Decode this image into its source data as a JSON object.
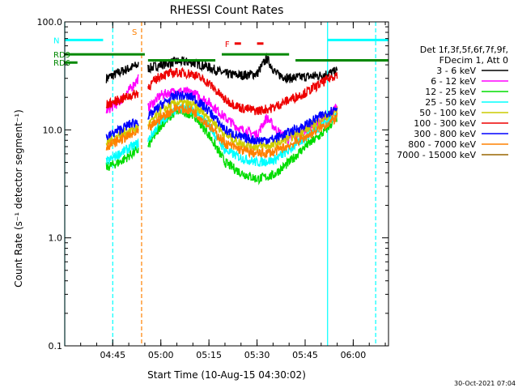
{
  "chart_data": {
    "type": "line",
    "title": "RHESSI Count Rates",
    "xlabel": "Start Time (10-Aug-15 04:30:02)",
    "ylabel": "Count Rate (s⁻¹ detector segment⁻¹)",
    "ylim": [
      0.1,
      100.0
    ],
    "yscale": "log",
    "xlim": [
      "04:30:02",
      "06:11:00"
    ],
    "x_ticks": [
      "04:45",
      "05:00",
      "05:15",
      "05:30",
      "05:45",
      "06:00"
    ],
    "y_ticks": [
      "100.0",
      "10.0",
      "1.0",
      "0.1"
    ],
    "grid": false,
    "timestamp": "30-Oct-2021 07:04",
    "legend": {
      "placement": "right",
      "header": [
        "Det 1f,3f,5f,6f,7f,9f,",
        "FDecim 1, Att 0"
      ],
      "entries": [
        {
          "label": "3 - 6 keV",
          "color": "#000000"
        },
        {
          "label": "6 - 12 keV",
          "color": "#ff00ff"
        },
        {
          "label": "12 - 25 keV",
          "color": "#00dd00"
        },
        {
          "label": "25 - 50 keV",
          "color": "#00ffff"
        },
        {
          "label": "50 - 100 keV",
          "color": "#cccc00"
        },
        {
          "label": "100 - 300 keV",
          "color": "#ee0000"
        },
        {
          "label": "300 - 800 keV",
          "color": "#0000ff"
        },
        {
          "label": "800 - 7000 keV",
          "color": "#ff8000"
        },
        {
          "label": "7000 - 15000 keV",
          "color": "#996600"
        }
      ]
    },
    "series": [
      {
        "name": "3 - 6 keV",
        "color": "#000000",
        "segments": [
          {
            "x": [
              "04:43",
              "04:47",
              "04:51",
              "04:53"
            ],
            "y": [
              30,
              34,
              38,
              40
            ]
          },
          {
            "x": [
              "04:56",
              "05:00",
              "05:05",
              "05:10",
              "05:15",
              "05:20",
              "05:25",
              "05:30",
              "05:33",
              "05:36",
              "05:40",
              "05:45",
              "05:50",
              "05:55"
            ],
            "y": [
              37,
              40,
              43,
              42,
              38,
              33,
              32,
              33,
              46,
              33,
              30,
              31,
              32,
              35
            ]
          }
        ]
      },
      {
        "name": "6 - 12 keV",
        "color": "#ff00ff",
        "segments": [
          {
            "x": [
              "04:43",
              "04:47",
              "04:51",
              "04:53"
            ],
            "y": [
              15,
              18,
              25,
              30
            ]
          },
          {
            "x": [
              "04:56",
              "05:00",
              "05:05",
              "05:10",
              "05:15",
              "05:20",
              "05:25",
              "05:30",
              "05:33",
              "05:36",
              "05:40",
              "05:45",
              "05:50",
              "05:55"
            ],
            "y": [
              16,
              21,
              23,
              22,
              18,
              13,
              10,
              9,
              13,
              10,
              8,
              10,
              12,
              16
            ]
          }
        ]
      },
      {
        "name": "12 - 25 keV",
        "color": "#00dd00",
        "segments": [
          {
            "x": [
              "04:43",
              "04:47",
              "04:51",
              "04:53"
            ],
            "y": [
              4.5,
              5,
              6,
              6.5
            ]
          },
          {
            "x": [
              "04:56",
              "05:00",
              "05:05",
              "05:10",
              "05:15",
              "05:20",
              "05:25",
              "05:30",
              "05:35",
              "05:40",
              "05:45",
              "05:50",
              "05:55"
            ],
            "y": [
              7,
              11,
              15,
              14,
              9,
              5,
              4,
              3.5,
              3.8,
              5,
              7,
              9,
              13
            ]
          }
        ]
      },
      {
        "name": "25 - 50 keV",
        "color": "#00ffff",
        "segments": [
          {
            "x": [
              "04:43",
              "04:47",
              "04:51",
              "04:53"
            ],
            "y": [
              5,
              6,
              7,
              7.5
            ]
          },
          {
            "x": [
              "04:56",
              "05:00",
              "05:05",
              "05:10",
              "05:15",
              "05:20",
              "05:25",
              "05:30",
              "05:35",
              "05:40",
              "05:45",
              "05:50",
              "05:55"
            ],
            "y": [
              8,
              12,
              16,
              15,
              11,
              6.5,
              5.5,
              5,
              5.2,
              6.5,
              8.5,
              11,
              14
            ]
          }
        ]
      },
      {
        "name": "50 - 100 keV",
        "color": "#cccc00",
        "segments": [
          {
            "x": [
              "04:43",
              "04:47",
              "04:51",
              "04:53"
            ],
            "y": [
              7.5,
              9,
              10,
              10.5
            ]
          },
          {
            "x": [
              "04:56",
              "05:00",
              "05:05",
              "05:10",
              "05:15",
              "05:20",
              "05:25",
              "05:30",
              "05:35",
              "05:40",
              "05:45",
              "05:50",
              "05:55"
            ],
            "y": [
              11,
              15,
              18,
              17,
              13,
              9,
              7.5,
              7,
              7.2,
              8.5,
              10,
              12.5,
              15
            ]
          }
        ]
      },
      {
        "name": "100 - 300 keV",
        "color": "#ee0000",
        "segments": [
          {
            "x": [
              "04:43",
              "04:47",
              "04:51",
              "04:53"
            ],
            "y": [
              17,
              19,
              21,
              22
            ]
          },
          {
            "x": [
              "04:56",
              "05:00",
              "05:05",
              "05:10",
              "05:15",
              "05:20",
              "05:25",
              "05:30",
              "05:35",
              "05:40",
              "05:45",
              "05:50",
              "05:55"
            ],
            "y": [
              25,
              32,
              34,
              33,
              27,
              19,
              16,
              15,
              16,
              19,
              22,
              27,
              33
            ]
          }
        ]
      },
      {
        "name": "300 - 800 keV",
        "color": "#0000ff",
        "segments": [
          {
            "x": [
              "04:43",
              "04:47",
              "04:51",
              "04:53"
            ],
            "y": [
              8.5,
              10,
              11.5,
              12
            ]
          },
          {
            "x": [
              "04:56",
              "05:00",
              "05:05",
              "05:10",
              "05:15",
              "05:20",
              "05:25",
              "05:30",
              "05:35",
              "05:40",
              "05:45",
              "05:50",
              "05:55"
            ],
            "y": [
              13,
              17,
              21,
              20,
              15,
              10,
              8.5,
              8,
              8.2,
              9.5,
              11,
              13.5,
              16
            ]
          }
        ]
      },
      {
        "name": "800 - 7000 keV",
        "color": "#ff8000",
        "segments": [
          {
            "x": [
              "04:43",
              "04:47",
              "04:51",
              "04:53"
            ],
            "y": [
              7,
              8,
              9,
              9.5
            ]
          },
          {
            "x": [
              "04:56",
              "05:00",
              "05:05",
              "05:10",
              "05:15",
              "05:20",
              "05:25",
              "05:30",
              "05:35",
              "05:40",
              "05:45",
              "05:50",
              "05:55"
            ],
            "y": [
              10,
              13,
              16,
              15,
              11,
              7.5,
              6.5,
              6,
              6.2,
              7.2,
              8.5,
              10.5,
              13
            ]
          }
        ]
      }
    ],
    "attenuator_bars": [
      {
        "label": "N",
        "color": "#00ffff",
        "x": [
          "04:30:02",
          "04:42"
        ],
        "y": 68
      },
      {
        "label": "",
        "color": "#00ffff",
        "x": [
          "05:52",
          "06:11"
        ],
        "y": 68
      },
      {
        "label": "RD9",
        "color": "#008800",
        "x": [
          "04:30:02",
          "04:55"
        ],
        "y": 50
      },
      {
        "label": "",
        "color": "#008800",
        "x": [
          "04:56",
          "05:17"
        ],
        "y": 44
      },
      {
        "label": "",
        "color": "#008800",
        "x": [
          "05:19",
          "05:40"
        ],
        "y": 50
      },
      {
        "label": "",
        "color": "#008800",
        "x": [
          "05:42",
          "06:11"
        ],
        "y": 44
      },
      {
        "label": "RD6",
        "color": "#008800",
        "x": [
          "04:30:02",
          "04:34"
        ],
        "y": 42
      },
      {
        "label": "F",
        "color": "#ee0000",
        "x": [
          "05:23",
          "05:25"
        ],
        "y": 63
      },
      {
        "label": "",
        "color": "#ee0000",
        "x": [
          "05:30",
          "05:32"
        ],
        "y": 63
      }
    ],
    "vertical_markers": [
      {
        "label": "",
        "color": "#00ffff",
        "x": "04:30:02",
        "style": "solid"
      },
      {
        "label": "",
        "color": "#00ffff",
        "x": "04:45",
        "style": "dashed"
      },
      {
        "label": "S",
        "color": "#ff8000",
        "x": "04:54",
        "style": "dashed"
      },
      {
        "label": "",
        "color": "#00ffff",
        "x": "05:52",
        "style": "solid"
      },
      {
        "label": "",
        "color": "#00ffff",
        "x": "06:07",
        "style": "dashed"
      }
    ]
  }
}
